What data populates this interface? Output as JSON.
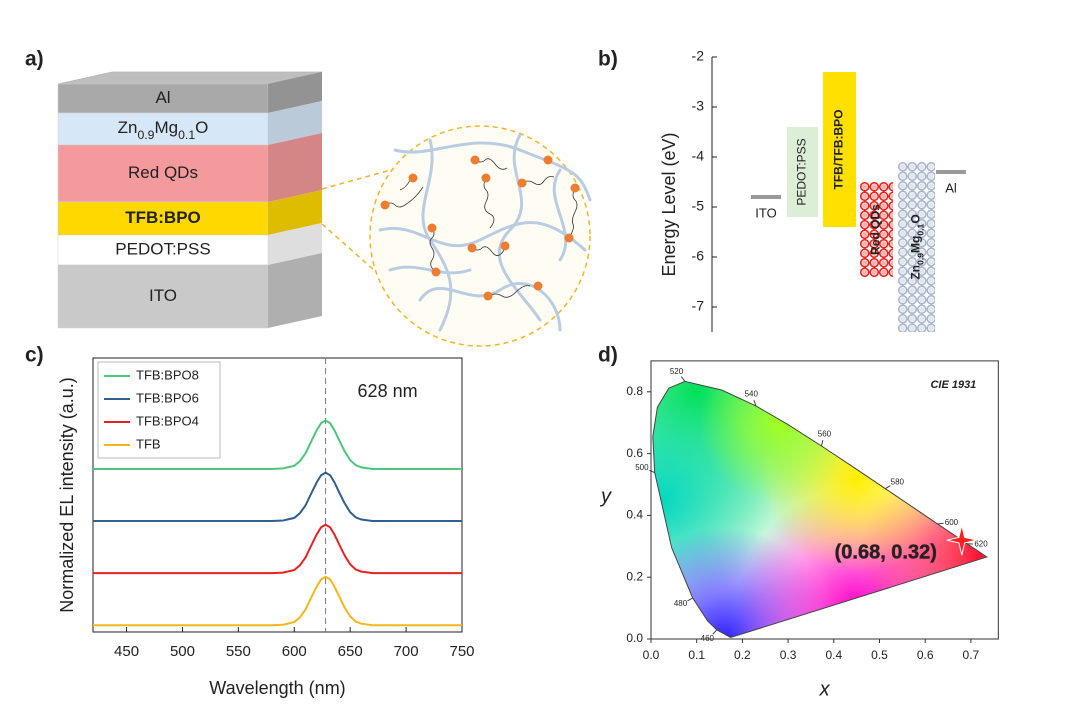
{
  "panel_labels": [
    "a)",
    "b)",
    "c)",
    "d)"
  ],
  "device": {
    "layers": [
      {
        "name": "Al",
        "color": "#a9a9a9"
      },
      {
        "name": [
          {
            "text": "Zn"
          },
          {
            "text": "0.9",
            "sub": true
          },
          {
            "text": "Mg"
          },
          {
            "text": "0.1",
            "sub": true
          },
          {
            "text": "O"
          }
        ],
        "color": "#d6e8f8"
      },
      {
        "name": "Red QDs",
        "color": "#f49a9c"
      },
      {
        "name": "TFB:BPO",
        "color": "#ffd800",
        "bold": true
      },
      {
        "name": "PEDOT:PSS",
        "color": "#ffffff"
      },
      {
        "name": "ITO",
        "color": "#c9c9c9"
      }
    ]
  },
  "chart_data": [
    {
      "type": "energy_level",
      "ylabel": "Energy Level (eV)",
      "ylim": [
        -7.5,
        -2
      ],
      "yticks": [
        -2,
        -3,
        -4,
        -5,
        -6,
        -7
      ],
      "levels": [
        {
          "name": "ITO",
          "kind": "line",
          "value": -4.8,
          "color": "#9a9a9a"
        },
        {
          "name": "PEDOT:PSS",
          "kind": "box",
          "top": -3.4,
          "bottom": -5.2,
          "color": "#dcefd6"
        },
        {
          "name": "TFB/TFB:BPO",
          "kind": "box",
          "top": -2.3,
          "bottom": -5.4,
          "color": "#ffe000",
          "bold": true
        },
        {
          "name": "Red QDs",
          "kind": "dots",
          "top": -4.5,
          "bottom": -6.4,
          "color": "#e8231e",
          "bold": true
        },
        {
          "name": [
            {
              "text": "Zn"
            },
            {
              "text": "0.9",
              "sub": true
            },
            {
              "text": "Mg"
            },
            {
              "text": "0.1",
              "sub": true
            },
            {
              "text": "O"
            }
          ],
          "kind": "dots",
          "top": -4.1,
          "bottom": -7.5,
          "color": "#a9b6cc",
          "bold": true
        },
        {
          "name": "Al",
          "kind": "line",
          "value": -4.3,
          "color": "#9a9a9a"
        }
      ]
    },
    {
      "type": "line",
      "xlabel": "Wavelength (nm)",
      "ylabel": "Normalized EL intensity (a.u.)",
      "xlim": [
        420,
        750
      ],
      "xticks": [
        450,
        500,
        550,
        600,
        650,
        700,
        750
      ],
      "ylim": [
        -0.13,
        5.13
      ],
      "annotation": {
        "text": "628 nm",
        "x": 628
      },
      "x": [
        420,
        500,
        560,
        580,
        590,
        600,
        605,
        610,
        615,
        620,
        624,
        628,
        632,
        636,
        640,
        645,
        650,
        655,
        660,
        670,
        680,
        700,
        750
      ],
      "series": [
        {
          "name": "TFB:BPO8",
          "color": "#4ec57c",
          "values": [
            3,
            3,
            3,
            3,
            3.01,
            3.06,
            3.15,
            3.3,
            3.52,
            3.74,
            3.88,
            3.93,
            3.88,
            3.74,
            3.56,
            3.34,
            3.17,
            3.07,
            3.03,
            3,
            3,
            3,
            3
          ]
        },
        {
          "name": "TFB:BPO6",
          "color": "#2f5f8f",
          "values": [
            2,
            2,
            2,
            2,
            2.01,
            2.06,
            2.15,
            2.3,
            2.52,
            2.74,
            2.88,
            2.93,
            2.88,
            2.74,
            2.56,
            2.34,
            2.17,
            2.07,
            2.03,
            2,
            2,
            2,
            2
          ]
        },
        {
          "name": "TFB:BPO4",
          "color": "#e52222",
          "values": [
            1,
            1,
            1,
            1,
            1.01,
            1.06,
            1.15,
            1.3,
            1.52,
            1.74,
            1.88,
            1.93,
            1.88,
            1.74,
            1.56,
            1.34,
            1.17,
            1.07,
            1.03,
            1,
            1,
            1,
            1
          ]
        },
        {
          "name": "TFB",
          "color": "#f3b71d",
          "values": [
            0,
            0,
            0,
            0,
            0.01,
            0.06,
            0.15,
            0.3,
            0.52,
            0.74,
            0.88,
            0.93,
            0.88,
            0.74,
            0.56,
            0.34,
            0.17,
            0.07,
            0.03,
            0,
            0,
            0,
            0
          ]
        }
      ]
    },
    {
      "type": "cie",
      "title": "CIE 1931",
      "xlabel": "x",
      "ylabel": "y",
      "xlim": [
        0,
        0.76
      ],
      "ylim": [
        0,
        0.9
      ],
      "xticks": [
        {
          "value": 0,
          "label": "0.0"
        },
        0.1,
        0.2,
        0.3,
        0.4,
        0.5,
        0.6,
        0.7
      ],
      "yticks": [
        {
          "value": 0,
          "label": "0.0"
        },
        0.2,
        0.4,
        0.6,
        0.8
      ],
      "locus_x": [
        0.1741,
        0.144,
        0.1241,
        0.0913,
        0.0454,
        0.0082,
        0.0039,
        0.0139,
        0.0389,
        0.0743,
        0.1547,
        0.2296,
        0.3016,
        0.3731,
        0.4441,
        0.5125,
        0.5752,
        0.627,
        0.6915,
        0.7347
      ],
      "locus_y": [
        0.005,
        0.0297,
        0.0578,
        0.1327,
        0.295,
        0.5384,
        0.6548,
        0.7502,
        0.812,
        0.8338,
        0.8059,
        0.7543,
        0.6923,
        0.6245,
        0.5547,
        0.4866,
        0.4242,
        0.3725,
        0.3083,
        0.2653
      ],
      "wavelength_labels": [
        {
          "label": "460",
          "x": 0.144,
          "y": 0.0297
        },
        {
          "label": "480",
          "x": 0.0913,
          "y": 0.1327
        },
        {
          "label": "500",
          "x": 0.0082,
          "y": 0.5384
        },
        {
          "label": "520",
          "x": 0.0743,
          "y": 0.8338
        },
        {
          "label": "540",
          "x": 0.2296,
          "y": 0.7543
        },
        {
          "label": "560",
          "x": 0.3731,
          "y": 0.6245
        },
        {
          "label": "580",
          "x": 0.5125,
          "y": 0.4866
        },
        {
          "label": "600",
          "x": 0.627,
          "y": 0.3725
        },
        {
          "label": "620",
          "x": 0.6915,
          "y": 0.3083
        }
      ],
      "point": {
        "x": 0.68,
        "y": 0.32,
        "label": "(0.68, 0.32)",
        "color": "#ff1f1f"
      }
    }
  ]
}
